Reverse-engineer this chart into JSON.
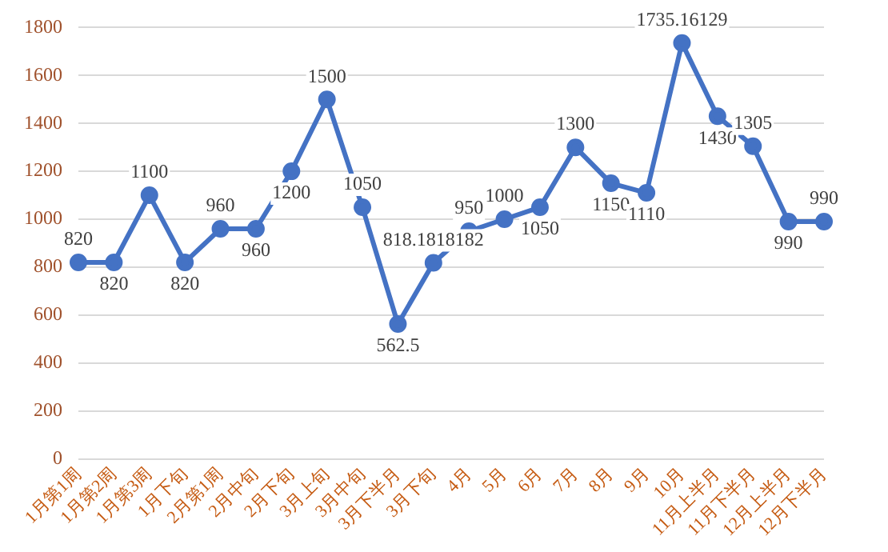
{
  "chart_data": {
    "type": "line",
    "categories": [
      "1月第1周",
      "1月第2周",
      "1月第3周",
      "1月下旬",
      "2月第1周",
      "2月中旬",
      "2月下旬",
      "3月上旬",
      "3月中旬",
      "3月下半月",
      "3月下旬",
      "4月",
      "5月",
      "6月",
      "7月",
      "8月",
      "9月",
      "10月",
      "11月上半月",
      "11月下半月",
      "12月上半月",
      "12月下半月"
    ],
    "series": [
      {
        "color": "#4472c4",
        "values": [
          820,
          820,
          1100,
          820,
          960,
          960,
          1200,
          1500,
          1050,
          562.5,
          818.1818182,
          950,
          1000,
          1050,
          1300,
          1150,
          1110,
          1735.16129,
          1430,
          1305,
          990,
          990
        ]
      }
    ],
    "ylim": [
      0,
      1800
    ],
    "yticks": [
      0,
      200,
      400,
      600,
      800,
      1000,
      1200,
      1400,
      1600,
      1800
    ],
    "grid": "y",
    "legend": false,
    "marker": "circle",
    "line_style": "solid",
    "data_labels": true
  }
}
